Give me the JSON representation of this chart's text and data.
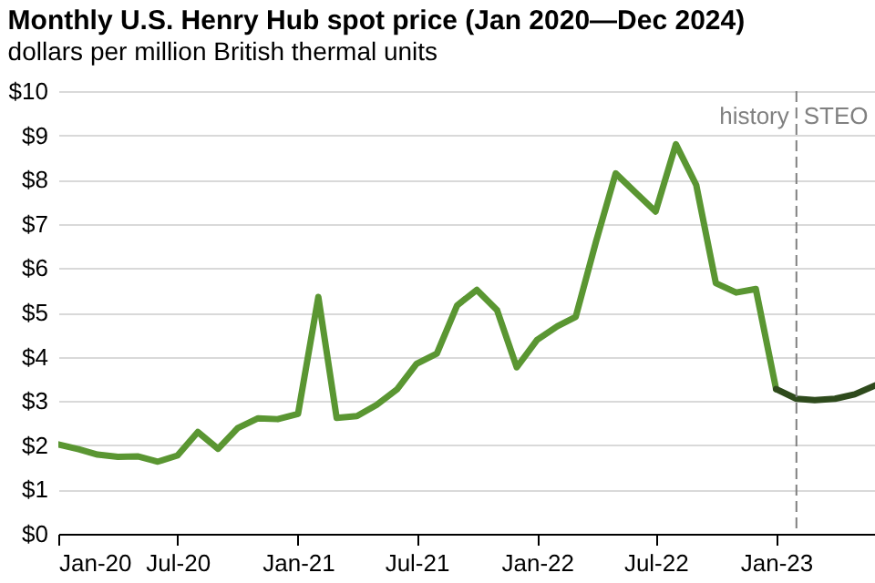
{
  "chart_data": {
    "type": "line",
    "title": "Monthly U.S. Henry Hub spot price (Jan 2020—Dec 2024)",
    "subtitle": "dollars per million British thermal units",
    "series": [
      {
        "color": "#5a9632",
        "x": [
          "2020-01",
          "2020-02",
          "2020-03",
          "2020-04",
          "2020-05",
          "2020-06",
          "2020-07",
          "2020-08",
          "2020-09",
          "2020-10",
          "2020-11",
          "2020-12",
          "2021-01",
          "2021-02",
          "2021-03",
          "2021-04",
          "2021-05",
          "2021-06",
          "2021-07",
          "2021-08",
          "2021-09",
          "2021-10",
          "2021-11",
          "2021-12",
          "2022-01",
          "2022-02",
          "2022-03",
          "2022-04",
          "2022-05",
          "2022-06",
          "2022-07",
          "2022-08",
          "2022-09",
          "2022-10",
          "2022-11",
          "2022-12",
          "2023-01"
        ],
        "values": [
          2.02,
          1.91,
          1.79,
          1.74,
          1.75,
          1.63,
          1.77,
          2.3,
          1.92,
          2.39,
          2.61,
          2.59,
          2.71,
          5.35,
          2.62,
          2.66,
          2.91,
          3.26,
          3.84,
          4.07,
          5.16,
          5.51,
          5.05,
          3.76,
          4.38,
          4.69,
          4.9,
          6.6,
          8.14,
          7.7,
          7.28,
          8.8,
          7.88,
          5.66,
          5.45,
          5.53,
          3.27
        ]
      },
      {
        "color": "#2e4a1c",
        "x": [
          "2023-01",
          "2023-02",
          "2023-03",
          "2023-04",
          "2023-05",
          "2023-06"
        ],
        "values": [
          3.27,
          3.05,
          3.02,
          3.05,
          3.15,
          3.35
        ]
      }
    ],
    "xlim": [
      "2020-01",
      "2023-06"
    ],
    "xticks": [
      {
        "value": "2020-01",
        "label": "Jan-20"
      },
      {
        "value": "2020-07",
        "label": "Jul-20"
      },
      {
        "value": "2021-01",
        "label": "Jan-21"
      },
      {
        "value": "2021-07",
        "label": "Jul-21"
      },
      {
        "value": "2022-01",
        "label": "Jan-22"
      },
      {
        "value": "2022-07",
        "label": "Jul-22"
      },
      {
        "value": "2023-01",
        "label": "Jan-23"
      }
    ],
    "ylim": [
      0,
      10
    ],
    "yticks": [
      {
        "value": 0,
        "label": "$0"
      },
      {
        "value": 1,
        "label": "$1"
      },
      {
        "value": 2,
        "label": "$2"
      },
      {
        "value": 3,
        "label": "$3"
      },
      {
        "value": 4,
        "label": "$4"
      },
      {
        "value": 5,
        "label": "$5"
      },
      {
        "value": 6,
        "label": "$6"
      },
      {
        "value": 7,
        "label": "$7"
      },
      {
        "value": 8,
        "label": "$8"
      },
      {
        "value": 9,
        "label": "$9"
      },
      {
        "value": 10,
        "label": "$10"
      }
    ],
    "ref_lines": [
      {
        "axis": "x",
        "value": "2023-02",
        "label": "history",
        "color": "#808080",
        "line_style": "dashed"
      }
    ],
    "annotations": [
      "STEO"
    ],
    "grid": "y",
    "marker": "none",
    "line_style": "solid"
  }
}
